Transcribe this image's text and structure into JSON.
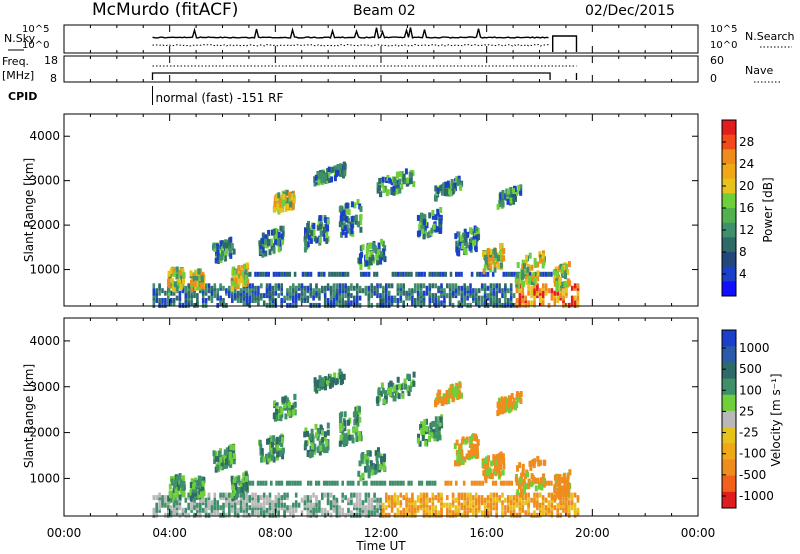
{
  "header": {
    "station": "McMurdo (fitACF)",
    "beam": "Beam 02",
    "date": "02/Dec/2015"
  },
  "noise_panel": {
    "left_label": "N.Sky",
    "right_label": "N.Search",
    "left_ticks": [
      "10^5",
      "10^0"
    ],
    "right_ticks": [
      "10^5",
      "10^0"
    ]
  },
  "freq_panel": {
    "left_label_1": "Freq.",
    "left_label_2": "[MHz]",
    "left_ticks": [
      "18",
      "8"
    ],
    "right_label": "Nave",
    "right_ticks": [
      "60",
      "0"
    ]
  },
  "cpid": {
    "label": "CPID",
    "value": "normal (fast) -151 RF"
  },
  "colors": {
    "blue": "#1a3fc8",
    "teal_dark": "#2e6a68",
    "green_mid": "#3f8f6b",
    "green_light": "#6fcf3a",
    "yellow": "#e6c21a",
    "orange": "#f08c1e",
    "red": "#e01e1e",
    "gray": "#b8b8b8"
  },
  "chart_data": [
    {
      "type": "heatmap",
      "name": "power",
      "ylabel": "Slant Range [km]",
      "yticks": [
        "4000",
        "3000",
        "2000",
        "1000"
      ],
      "ylim": [
        180,
        4500
      ],
      "colorbar_label": "Power [dB]",
      "colorbar_ticks": [
        "28",
        "24",
        "20",
        "16",
        "12",
        "8",
        "4"
      ],
      "colorbar_range": [
        0,
        32
      ]
    },
    {
      "type": "heatmap",
      "name": "velocity",
      "ylabel": "Slant Range [km]",
      "yticks": [
        "4000",
        "3000",
        "2000",
        "1000"
      ],
      "ylim": [
        180,
        4500
      ],
      "colorbar_label": "Velocity [m s⁻¹]",
      "colorbar_ticks": [
        "1000",
        "500",
        "100",
        "25",
        "-25",
        "-100",
        "-500",
        "-1000"
      ],
      "xlabel": "Time UT",
      "xticks": [
        "00:00",
        "04:00",
        "08:00",
        "12:00",
        "16:00",
        "20:00",
        "00:00"
      ],
      "xlim_hours": [
        0,
        24
      ]
    }
  ]
}
